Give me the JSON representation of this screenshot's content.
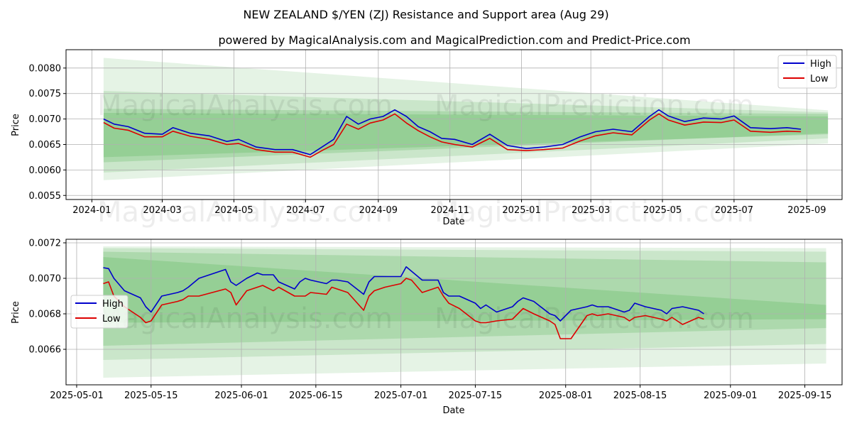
{
  "title": "NEW ZEALAND $/YEN (ZJ) Resistance and Support area (Aug 29)",
  "subtitle": "powered by MagicalAnalysis.com and MagicalPrediction.com and Predict-Price.com",
  "watermarks": [
    "MagicalAnalysis.com",
    "MagicalPrediction.com"
  ],
  "colors": {
    "high": "#0000cc",
    "low": "#dd0000",
    "band": "#2ca02c"
  },
  "chart_data": [
    {
      "type": "line",
      "xlabel": "Date",
      "ylabel": "Price",
      "xlim": [
        "2023-12-10",
        "2025-10-01"
      ],
      "ylim": [
        0.00542,
        0.00836
      ],
      "xticks": [
        "2024-01",
        "2024-03",
        "2024-05",
        "2024-07",
        "2024-09",
        "2024-11",
        "2025-01",
        "2025-03",
        "2025-05",
        "2025-07",
        "2025-09"
      ],
      "yticks": [
        "0.0055",
        "0.0060",
        "0.0065",
        "0.0070",
        "0.0075",
        "0.0080"
      ],
      "legend": "top-right",
      "grid": true,
      "bands_start": "2024-01-11",
      "bands_end": "2025-09-19",
      "bands": [
        {
          "top": [
            0.0082,
            0.00717
          ],
          "bottom": [
            0.0058,
            0.00652
          ],
          "opacity": 0.12
        },
        {
          "top": [
            0.00755,
            0.00713
          ],
          "bottom": [
            0.00595,
            0.00662
          ],
          "opacity": 0.15
        },
        {
          "top": [
            0.0072,
            0.0071
          ],
          "bottom": [
            0.00615,
            0.00672
          ],
          "opacity": 0.18
        },
        {
          "top": [
            0.00712,
            0.00705
          ],
          "bottom": [
            0.00625,
            0.0067
          ],
          "opacity": 0.18
        }
      ],
      "series": [
        {
          "name": "High",
          "x": [
            "2024-01-11",
            "2024-01-20",
            "2024-02-01",
            "2024-02-15",
            "2024-03-01",
            "2024-03-10",
            "2024-03-25",
            "2024-04-10",
            "2024-04-25",
            "2024-05-05",
            "2024-05-20",
            "2024-06-05",
            "2024-06-20",
            "2024-07-05",
            "2024-07-15",
            "2024-07-25",
            "2024-08-05",
            "2024-08-15",
            "2024-08-25",
            "2024-09-05",
            "2024-09-15",
            "2024-09-25",
            "2024-10-05",
            "2024-10-15",
            "2024-10-25",
            "2024-11-05",
            "2024-11-20",
            "2024-12-05",
            "2024-12-20",
            "2025-01-05",
            "2025-01-20",
            "2025-02-05",
            "2025-02-20",
            "2025-03-05",
            "2025-03-20",
            "2025-04-05",
            "2025-04-20",
            "2025-04-28",
            "2025-05-06",
            "2025-05-20",
            "2025-06-05",
            "2025-06-20",
            "2025-07-01",
            "2025-07-15",
            "2025-08-01",
            "2025-08-15",
            "2025-08-27"
          ],
          "y": [
            0.007,
            0.0069,
            0.00685,
            0.00672,
            0.0067,
            0.00683,
            0.00672,
            0.00667,
            0.00656,
            0.0066,
            0.00645,
            0.0064,
            0.0064,
            0.0063,
            0.00645,
            0.0066,
            0.00705,
            0.0069,
            0.007,
            0.00705,
            0.00718,
            0.00705,
            0.00685,
            0.00675,
            0.00662,
            0.0066,
            0.0065,
            0.0067,
            0.00648,
            0.00642,
            0.00645,
            0.0065,
            0.00665,
            0.00675,
            0.0068,
            0.00675,
            0.00705,
            0.00718,
            0.00706,
            0.00695,
            0.00702,
            0.007,
            0.00706,
            0.00683,
            0.00681,
            0.00683,
            0.0068
          ]
        },
        {
          "name": "Low",
          "x": [
            "2024-01-11",
            "2024-01-20",
            "2024-02-01",
            "2024-02-15",
            "2024-03-01",
            "2024-03-10",
            "2024-03-25",
            "2024-04-10",
            "2024-04-25",
            "2024-05-05",
            "2024-05-20",
            "2024-06-05",
            "2024-06-20",
            "2024-07-05",
            "2024-07-15",
            "2024-07-25",
            "2024-08-05",
            "2024-08-15",
            "2024-08-25",
            "2024-09-05",
            "2024-09-15",
            "2024-09-25",
            "2024-10-05",
            "2024-10-15",
            "2024-10-25",
            "2024-11-05",
            "2024-11-20",
            "2024-12-05",
            "2024-12-20",
            "2025-01-05",
            "2025-01-20",
            "2025-02-05",
            "2025-02-20",
            "2025-03-05",
            "2025-03-20",
            "2025-04-05",
            "2025-04-20",
            "2025-04-28",
            "2025-05-06",
            "2025-05-20",
            "2025-06-05",
            "2025-06-20",
            "2025-07-01",
            "2025-07-15",
            "2025-08-01",
            "2025-08-15",
            "2025-08-27"
          ],
          "y": [
            0.00693,
            0.00682,
            0.00678,
            0.00665,
            0.00665,
            0.00676,
            0.00666,
            0.0066,
            0.0065,
            0.00652,
            0.0064,
            0.00635,
            0.00635,
            0.00625,
            0.00638,
            0.0065,
            0.0069,
            0.0068,
            0.00692,
            0.00698,
            0.0071,
            0.00692,
            0.00677,
            0.00665,
            0.00655,
            0.0065,
            0.00645,
            0.00662,
            0.0064,
            0.00638,
            0.0064,
            0.00643,
            0.00657,
            0.00667,
            0.00673,
            0.00669,
            0.00698,
            0.0071,
            0.00698,
            0.00688,
            0.00694,
            0.00693,
            0.00698,
            0.00676,
            0.00674,
            0.00676,
            0.00675
          ]
        }
      ]
    },
    {
      "type": "line",
      "xlabel": "Date",
      "ylabel": "Price",
      "xlim": [
        "2025-04-29",
        "2025-09-22"
      ],
      "ylim": [
        0.0064,
        0.00722
      ],
      "xticks": [
        "2025-05-01",
        "2025-05-15",
        "2025-06-01",
        "2025-06-15",
        "2025-07-01",
        "2025-07-15",
        "2025-08-01",
        "2025-08-15",
        "2025-09-01",
        "2025-09-15"
      ],
      "yticks": [
        "0.0066",
        "0.0068",
        "0.0070",
        "0.0072"
      ],
      "legend": "center-left",
      "grid": true,
      "bands_start": "2025-05-06",
      "bands_end": "2025-09-19",
      "bands": [
        {
          "top": [
            0.00718,
            0.00717
          ],
          "bottom": [
            0.00644,
            0.00652
          ],
          "opacity": 0.12
        },
        {
          "top": [
            0.00717,
            0.00715
          ],
          "bottom": [
            0.00654,
            0.00663
          ],
          "opacity": 0.15
        },
        {
          "top": [
            0.00715,
            0.00709
          ],
          "bottom": [
            0.00662,
            0.00672
          ],
          "opacity": 0.18
        },
        {
          "top": [
            0.00712,
            0.00685
          ],
          "bottom": [
            0.00675,
            0.00677
          ],
          "opacity": 0.18
        }
      ],
      "series": [
        {
          "name": "High",
          "x": [
            "2025-05-06",
            "2025-05-07",
            "2025-05-08",
            "2025-05-10",
            "2025-05-13",
            "2025-05-14",
            "2025-05-15",
            "2025-05-17",
            "2025-05-20",
            "2025-05-21",
            "2025-05-22",
            "2025-05-24",
            "2025-05-29",
            "2025-05-30",
            "2025-05-31",
            "2025-06-02",
            "2025-06-04",
            "2025-06-05",
            "2025-06-07",
            "2025-06-08",
            "2025-06-11",
            "2025-06-12",
            "2025-06-13",
            "2025-06-14",
            "2025-06-17",
            "2025-06-18",
            "2025-06-19",
            "2025-06-21",
            "2025-06-24",
            "2025-06-25",
            "2025-06-26",
            "2025-06-28",
            "2025-07-01",
            "2025-07-02",
            "2025-07-03",
            "2025-07-05",
            "2025-07-08",
            "2025-07-09",
            "2025-07-10",
            "2025-07-12",
            "2025-07-15",
            "2025-07-16",
            "2025-07-17",
            "2025-07-19",
            "2025-07-22",
            "2025-07-23",
            "2025-07-24",
            "2025-07-26",
            "2025-07-29",
            "2025-07-30",
            "2025-07-31",
            "2025-08-02",
            "2025-08-05",
            "2025-08-06",
            "2025-08-07",
            "2025-08-09",
            "2025-08-12",
            "2025-08-13",
            "2025-08-14",
            "2025-08-16",
            "2025-08-19",
            "2025-08-20",
            "2025-08-21",
            "2025-08-23",
            "2025-08-26",
            "2025-08-27"
          ],
          "y": [
            0.00706,
            0.007055,
            0.007,
            0.00693,
            0.00689,
            0.00684,
            0.00681,
            0.0069,
            0.00692,
            0.00693,
            0.00695,
            0.007,
            0.00705,
            0.00698,
            0.00696,
            0.007,
            0.00703,
            0.00702,
            0.00702,
            0.00698,
            0.00694,
            0.00698,
            0.007,
            0.00699,
            0.00697,
            0.00699,
            0.00699,
            0.00698,
            0.00691,
            0.00698,
            0.00701,
            0.00701,
            0.00701,
            0.007065,
            0.00704,
            0.00699,
            0.00699,
            0.00692,
            0.0069,
            0.0069,
            0.00686,
            0.00683,
            0.00685,
            0.00681,
            0.00684,
            0.00687,
            0.00689,
            0.00687,
            0.0068,
            0.00679,
            0.00676,
            0.00682,
            0.00684,
            0.00685,
            0.00684,
            0.00684,
            0.00681,
            0.00682,
            0.00686,
            0.00684,
            0.00682,
            0.0068,
            0.00683,
            0.00684,
            0.00682,
            0.0068
          ]
        },
        {
          "name": "Low",
          "x": [
            "2025-05-06",
            "2025-05-07",
            "2025-05-08",
            "2025-05-10",
            "2025-05-13",
            "2025-05-14",
            "2025-05-15",
            "2025-05-17",
            "2025-05-20",
            "2025-05-21",
            "2025-05-22",
            "2025-05-24",
            "2025-05-29",
            "2025-05-30",
            "2025-05-31",
            "2025-06-02",
            "2025-06-04",
            "2025-06-05",
            "2025-06-07",
            "2025-06-08",
            "2025-06-11",
            "2025-06-12",
            "2025-06-13",
            "2025-06-14",
            "2025-06-17",
            "2025-06-18",
            "2025-06-19",
            "2025-06-21",
            "2025-06-24",
            "2025-06-25",
            "2025-06-26",
            "2025-06-28",
            "2025-07-01",
            "2025-07-02",
            "2025-07-03",
            "2025-07-05",
            "2025-07-08",
            "2025-07-09",
            "2025-07-10",
            "2025-07-12",
            "2025-07-15",
            "2025-07-16",
            "2025-07-17",
            "2025-07-19",
            "2025-07-22",
            "2025-07-23",
            "2025-07-24",
            "2025-07-26",
            "2025-07-29",
            "2025-07-30",
            "2025-07-31",
            "2025-08-02",
            "2025-08-05",
            "2025-08-06",
            "2025-08-07",
            "2025-08-09",
            "2025-08-12",
            "2025-08-13",
            "2025-08-14",
            "2025-08-16",
            "2025-08-19",
            "2025-08-20",
            "2025-08-21",
            "2025-08-23",
            "2025-08-26",
            "2025-08-27"
          ],
          "y": [
            0.00697,
            0.00698,
            0.0069,
            0.00684,
            0.00678,
            0.00675,
            0.00676,
            0.00685,
            0.00687,
            0.00688,
            0.0069,
            0.0069,
            0.00694,
            0.00692,
            0.00685,
            0.00693,
            0.00695,
            0.00696,
            0.00693,
            0.00695,
            0.0069,
            0.0069,
            0.0069,
            0.00692,
            0.00691,
            0.00695,
            0.00694,
            0.00692,
            0.00682,
            0.0069,
            0.00693,
            0.00695,
            0.00697,
            0.007,
            0.00699,
            0.00692,
            0.00695,
            0.0069,
            0.00686,
            0.00683,
            0.00676,
            0.00675,
            0.00675,
            0.00676,
            0.00677,
            0.0068,
            0.00683,
            0.0068,
            0.00676,
            0.00674,
            0.00666,
            0.00666,
            0.00679,
            0.0068,
            0.00679,
            0.0068,
            0.00678,
            0.00676,
            0.00678,
            0.00679,
            0.00677,
            0.00676,
            0.00678,
            0.00674,
            0.00678,
            0.00677
          ]
        }
      ]
    }
  ]
}
